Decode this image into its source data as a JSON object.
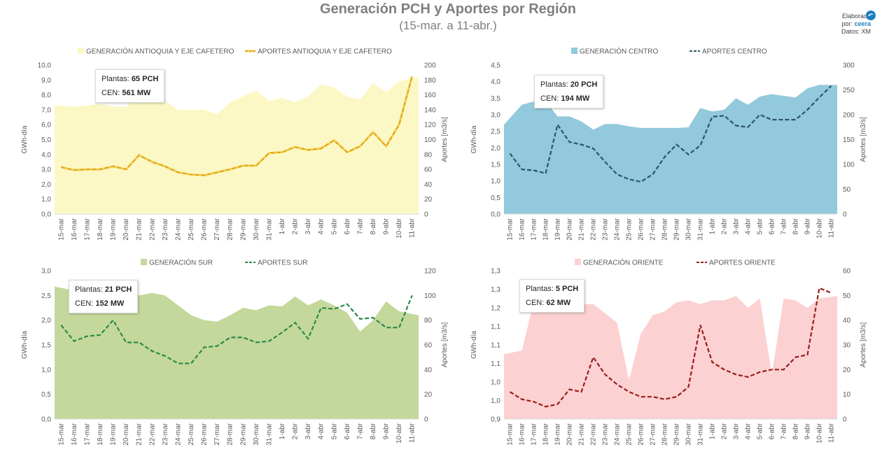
{
  "header": {
    "title": "Generación PCH y Aportes por Región",
    "subtitle": "(15-mar. a 11-abr.)",
    "credit_line1": "Elaborado",
    "credit_line2": "por:",
    "credit_brand": "ceera",
    "credit_line3": "Datos: XM"
  },
  "colors": {
    "antioquia_area": "#fcf8c5",
    "antioquia_line": "#e2a52a",
    "centro_area": "#92c9dc",
    "centro_line": "#2e5564",
    "sur_area": "#c4d89b",
    "sur_line": "#2a8a4c",
    "oriente_area": "#fcd1d1",
    "oriente_line": "#9b1c1c"
  },
  "chart_data": [
    {
      "type": "area",
      "id": "antioquia",
      "x": [
        "15-mar",
        "16-mar",
        "17-mar",
        "18-mar",
        "19-mar",
        "20-mar",
        "21-mar",
        "22-mar",
        "23-mar",
        "24-mar",
        "25-mar",
        "26-mar",
        "27-mar",
        "28-mar",
        "29-mar",
        "30-mar",
        "31-mar",
        "1-abr",
        "2-abr",
        "3-abr",
        "4-abr",
        "5-abr",
        "6-abr",
        "7-abr",
        "8-abr",
        "9-abr",
        "10-abr",
        "11-abr"
      ],
      "ylabel": "GWh-día",
      "y2label": "Aportes [m3/s]",
      "ylim": [
        0,
        10
      ],
      "ytick_step": 1,
      "ytick_decimals": 1,
      "y2lim": [
        0,
        200
      ],
      "y2tick_step": 20,
      "series": [
        {
          "name": "GENERACIÓN ANTIOQUIA Y EJE CAFETERO",
          "axis": "left",
          "kind": "area",
          "values": [
            7.3,
            7.2,
            7.3,
            7.4,
            7.2,
            7.2,
            8.0,
            7.8,
            7.6,
            7.0,
            7.0,
            7.0,
            6.7,
            7.5,
            7.9,
            8.3,
            7.6,
            7.8,
            7.5,
            7.9,
            8.7,
            8.5,
            7.9,
            7.7,
            8.8,
            8.2,
            8.9,
            9.2
          ]
        },
        {
          "name": "APORTES ANTIOQUIA Y EJE CAFETERO",
          "axis": "right",
          "kind": "line",
          "values": [
            63,
            59,
            60,
            60,
            64,
            60,
            79,
            70,
            64,
            56,
            53,
            52,
            56,
            60,
            65,
            65,
            82,
            83,
            90,
            86,
            88,
            99,
            83,
            91,
            110,
            91,
            120,
            185
          ]
        }
      ],
      "info": {
        "plants_label": "Plantas:",
        "plants_value": "65 PCH",
        "cen_label": "CEN:",
        "cen_value": "561 MW"
      }
    },
    {
      "type": "area",
      "id": "centro",
      "x": [
        "15-mar",
        "16-mar",
        "17-mar",
        "18-mar",
        "19-mar",
        "20-mar",
        "21-mar",
        "22-mar",
        "23-mar",
        "24-mar",
        "25-mar",
        "26-mar",
        "27-mar",
        "28-mar",
        "29-mar",
        "30-mar",
        "31-mar",
        "1-abr",
        "2-abr",
        "3-abr",
        "4-abr",
        "5-abr",
        "6-abr",
        "7-abr",
        "8-abr",
        "9-abr",
        "10-abr",
        "11-abr"
      ],
      "ylabel": "GWh-día",
      "y2label": "Aportes [m3/s]",
      "ylim": [
        0,
        4.5
      ],
      "ytick_step": 0.5,
      "ytick_decimals": 1,
      "y2lim": [
        0,
        300
      ],
      "y2tick_step": 50,
      "series": [
        {
          "name": "GENERACIÓN CENTRO",
          "axis": "left",
          "kind": "area",
          "values": [
            2.7,
            3.3,
            3.4,
            3.4,
            2.95,
            2.95,
            2.8,
            2.55,
            2.72,
            2.72,
            2.65,
            2.6,
            2.6,
            2.6,
            2.6,
            2.62,
            3.2,
            3.1,
            3.15,
            3.5,
            3.3,
            3.55,
            3.62,
            3.57,
            3.52,
            3.8,
            3.9,
            3.9
          ]
        },
        {
          "name": "APORTES CENTRO",
          "axis": "right",
          "kind": "line",
          "values": [
            122,
            90,
            88,
            82,
            180,
            145,
            140,
            132,
            105,
            80,
            70,
            65,
            80,
            115,
            140,
            120,
            138,
            196,
            198,
            178,
            175,
            200,
            190,
            190,
            190,
            210,
            235,
            258
          ]
        }
      ],
      "info": {
        "plants_label": "Plantas:",
        "plants_value": "20 PCH",
        "cen_label": "CEN:",
        "cen_value": "194 MW"
      }
    },
    {
      "type": "area",
      "id": "sur",
      "x": [
        "15-mar",
        "16-mar",
        "17-mar",
        "18-mar",
        "19-mar",
        "20-mar",
        "21-mar",
        "22-mar",
        "23-mar",
        "24-mar",
        "25-mar",
        "26-mar",
        "27-mar",
        "28-mar",
        "29-mar",
        "30-mar",
        "31-mar",
        "1-abr",
        "2-abr",
        "3-abr",
        "4-abr",
        "5-abr",
        "6-abr",
        "7-abr",
        "8-abr",
        "9-abr",
        "10-abr",
        "11-abr"
      ],
      "ylabel": "GWh-día",
      "y2label": "Aportes [m3/s]",
      "ylim": [
        0,
        3.0
      ],
      "ytick_step": 0.5,
      "ytick_decimals": 1,
      "y2lim": [
        0,
        120
      ],
      "y2tick_step": 20,
      "series": [
        {
          "name": "GENERACIÓN SUR",
          "axis": "left",
          "kind": "area",
          "values": [
            2.68,
            2.6,
            2.62,
            2.58,
            2.55,
            2.5,
            2.5,
            2.55,
            2.5,
            2.3,
            2.1,
            2.0,
            1.97,
            2.1,
            2.25,
            2.2,
            2.3,
            2.28,
            2.48,
            2.3,
            2.42,
            2.3,
            2.15,
            1.77,
            2.0,
            2.38,
            2.18,
            2.1
          ]
        },
        {
          "name": "APORTES SUR",
          "axis": "right",
          "kind": "line",
          "values": [
            76,
            63,
            67,
            68,
            80,
            62,
            62,
            55,
            51,
            45,
            45,
            58,
            59,
            66,
            66,
            62,
            63,
            70,
            78,
            65,
            90,
            89,
            93,
            81,
            82,
            74,
            74,
            100
          ]
        }
      ],
      "info": {
        "plants_label": "Plantas:",
        "plants_value": "21 PCH",
        "cen_label": "CEN:",
        "cen_value": "152 MW"
      }
    },
    {
      "type": "area",
      "id": "oriente",
      "x": [
        "15-mar",
        "16-mar",
        "17-mar",
        "18-mar",
        "19-mar",
        "20-mar",
        "21-mar",
        "22-mar",
        "23-mar",
        "24-mar",
        "25-mar",
        "26-mar",
        "27-mar",
        "28-mar",
        "29-mar",
        "30-mar",
        "31-mar",
        "1-abr",
        "2-abr",
        "3-abr",
        "4-abr",
        "5-abr",
        "6-abr",
        "7-abr",
        "8-abr",
        "9-abr",
        "10-abr",
        "11-abr"
      ],
      "ylabel": "GWh-día",
      "y2label": "Aportes [m3/s]",
      "ylim": [
        0.9,
        1.3
      ],
      "ytick_step": 0.05,
      "ytick_decimals": 1,
      "y2lim": [
        0,
        60
      ],
      "y2tick_step": 10,
      "series": [
        {
          "name": "GENERACIÓN ORIENTE",
          "axis": "left",
          "kind": "area",
          "values": [
            1.075,
            1.085,
            1.215,
            1.232,
            1.232,
            1.22,
            1.21,
            1.21,
            1.185,
            1.16,
            1.005,
            1.13,
            1.18,
            1.19,
            1.215,
            1.22,
            1.21,
            1.22,
            1.22,
            1.232,
            1.2,
            1.225,
            1.02,
            1.225,
            1.22,
            1.2,
            1.225,
            1.232
          ]
        },
        {
          "name": "APORTES ORIENTE",
          "axis": "right",
          "kind": "line",
          "values": [
            11,
            8,
            7,
            5,
            6,
            12,
            11,
            25,
            18,
            14,
            11,
            9,
            9,
            8,
            9,
            13,
            38,
            23,
            20,
            18,
            17,
            19,
            20,
            20,
            25,
            26,
            53,
            51
          ]
        }
      ],
      "info": {
        "plants_label": "Plantas:",
        "plants_value": "5 PCH",
        "cen_label": "CEN:",
        "cen_value": "62 MW"
      }
    }
  ]
}
